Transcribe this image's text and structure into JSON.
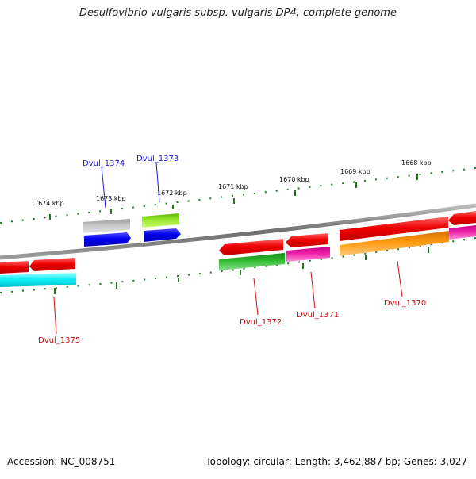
{
  "title": "Desulfovibrio vulgaris subsp. vulgaris DP4, complete genome",
  "footer": {
    "accession": "Accession: NC_008751",
    "summary": "Topology: circular; Length: 3,462,887 bp; Genes: 3,027"
  },
  "ticks": [
    "1674 kbp",
    "1673 kbp",
    "1672 kbp",
    "1671 kbp",
    "1670 kbp",
    "1669 kbp",
    "1668 kbp"
  ],
  "genes": [
    {
      "label": "Dvul_1374",
      "color": "#1a1adc",
      "strand": "forward"
    },
    {
      "label": "Dvul_1373",
      "color": "#1a1adc",
      "strand": "forward"
    },
    {
      "label": "Dvul_1375",
      "color": "#cc1111",
      "strand": "reverse"
    },
    {
      "label": "Dvul_1372",
      "color": "#cc1111",
      "strand": "reverse"
    },
    {
      "label": "Dvul_1371",
      "color": "#cc1111",
      "strand": "reverse"
    },
    {
      "label": "Dvul_1370",
      "color": "#cc1111",
      "strand": "reverse"
    }
  ],
  "colors": {
    "backbone": "#8a8a8a",
    "tick": "#1f7a1f",
    "cds_forward": "#1010e0",
    "cds_reverse": "#e01010",
    "cyan": "#10e0e8",
    "gray": "#b8b8b8",
    "lime": "#88e020",
    "green": "#28b028",
    "magenta": "#e020a0",
    "orange": "#ff9a10"
  }
}
